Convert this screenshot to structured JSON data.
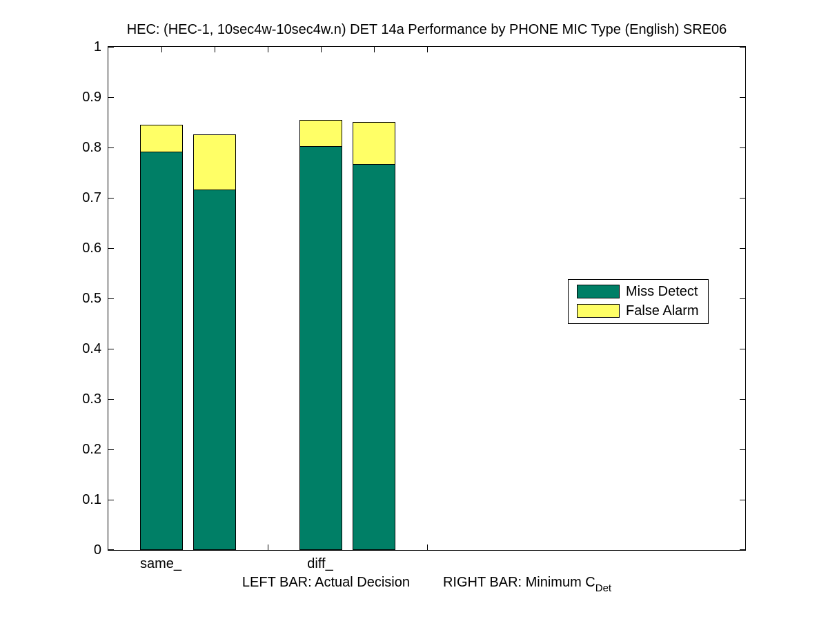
{
  "title": "HEC: (HEC-1, 10sec4w-10sec4w.n) DET 14a Performance by PHONE MIC Type (English) SRE06",
  "caption": {
    "left_text": "LEFT BAR: Actual Decision",
    "right_text": "RIGHT BAR: Minimum C",
    "right_subscript": "Det"
  },
  "legend": {
    "items": [
      {
        "label": "Miss Detect",
        "color": "#007F66"
      },
      {
        "label": "False Alarm",
        "color": "#FFFF66"
      }
    ]
  },
  "colors": {
    "miss_detect": "#007F66",
    "false_alarm": "#FFFF66",
    "axis": "#000000",
    "background": "#FFFFFF"
  },
  "chart_data": {
    "type": "bar",
    "stacked": true,
    "title": "HEC: (HEC-1, 10sec4w-10sec4w.n) DET 14a Performance by PHONE MIC Type (English) SRE06",
    "categories": [
      "same_",
      "diff_"
    ],
    "bar_semantics": {
      "left_bar": "Actual Decision",
      "right_bar": "Minimum CDet"
    },
    "series": [
      {
        "name": "Miss Detect",
        "color": "#007F66",
        "values": [
          0.792,
          0.717,
          0.803,
          0.767
        ]
      },
      {
        "name": "False Alarm",
        "color": "#FFFF66",
        "values": [
          0.054,
          0.109,
          0.052,
          0.083
        ]
      }
    ],
    "stack_totals": [
      0.846,
      0.826,
      0.855,
      0.85
    ],
    "bar_x_positions": [
      1,
      2,
      4,
      5
    ],
    "bar_category_map": [
      "same_",
      "same_",
      "diff_",
      "diff_"
    ],
    "bar_kind_map": [
      "Actual Decision",
      "Minimum CDet",
      "Actual Decision",
      "Minimum CDet"
    ],
    "bar_width": 0.8,
    "xlim": [
      0,
      12
    ],
    "ylim": [
      0,
      1
    ],
    "xticks": [
      1,
      2,
      3,
      4,
      5,
      6
    ],
    "xtick_labels": [
      {
        "x": 1,
        "label": "same_"
      },
      {
        "x": 4,
        "label": "diff_"
      }
    ],
    "ytick_labels": [
      "0",
      "0.1",
      "0.2",
      "0.3",
      "0.4",
      "0.5",
      "0.6",
      "0.7",
      "0.8",
      "0.9",
      "1"
    ],
    "grid": false,
    "legend_position": "middle-right",
    "background": "#FFFFFF"
  }
}
